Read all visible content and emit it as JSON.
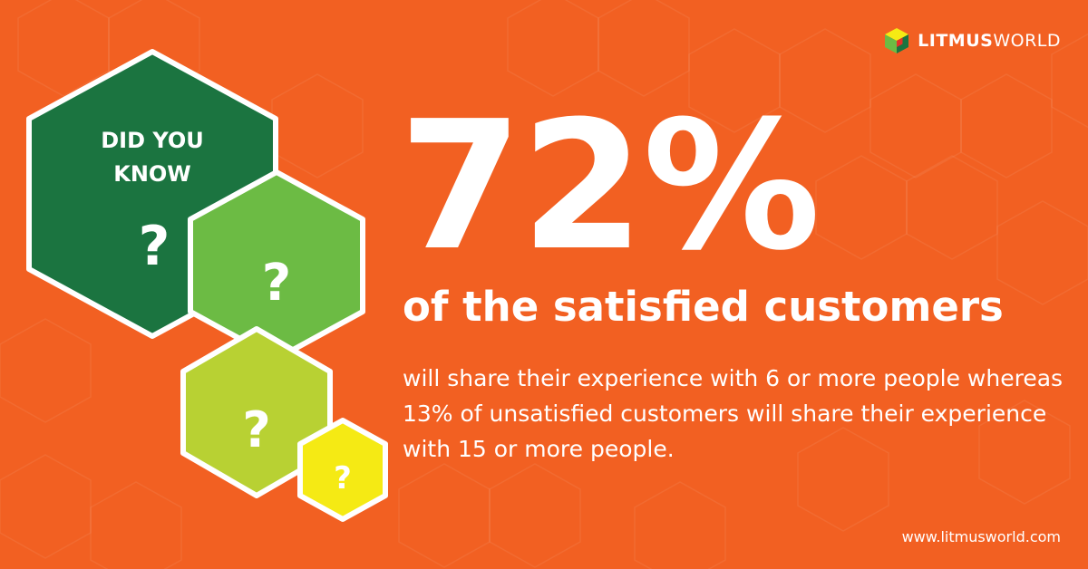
{
  "brand": {
    "name_bold": "LITMUS",
    "name_light": "WORLD",
    "logo_icon": "litmusworld-cube-icon"
  },
  "hexagons": {
    "heading_line1": "DID YOU",
    "heading_line2": "KNOW",
    "question_mark": "?"
  },
  "stat": {
    "value": "72%",
    "headline": "of the satisfied customers",
    "body": "will share their experience with 6 or more people whereas 13% of unsatisfied customers will share their experience with 15 or more people."
  },
  "footer": {
    "url": "www.litmusworld.com"
  },
  "colors": {
    "background": "#f26022",
    "dark_green": "#1b7440",
    "green": "#6cbb44",
    "lime": "#b8d133",
    "yellow": "#f5ea14",
    "outline": "#ffffff"
  }
}
